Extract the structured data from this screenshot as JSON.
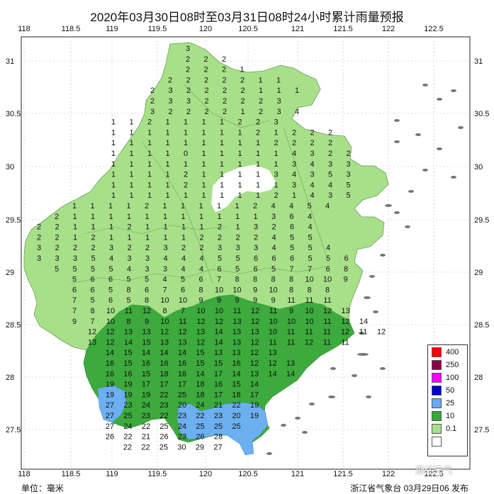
{
  "title": "2020年03月30日08时至03月31日08时24小时累计雨量预报",
  "axes": {
    "x_ticks": [
      "118",
      "118.5",
      "119",
      "119.5",
      "120",
      "120.5",
      "121",
      "121.5",
      "122",
      "122.5"
    ],
    "y_ticks": [
      "31",
      "30.5",
      "30",
      "29.5",
      "29",
      "28.5",
      "28",
      "27.5"
    ]
  },
  "legend": {
    "items": [
      {
        "label": "400",
        "color": "#ff0000"
      },
      {
        "label": "250",
        "color": "#8b0045"
      },
      {
        "label": "100",
        "color": "#ff00ff"
      },
      {
        "label": "50",
        "color": "#0000cc"
      },
      {
        "label": "25",
        "color": "#66aaff"
      },
      {
        "label": "10",
        "color": "#33aa33"
      },
      {
        "label": "0.1",
        "color": "#a8e08a"
      },
      {
        "label": "",
        "color": "#ffffff"
      }
    ]
  },
  "colors": {
    "light_green": "#a8e08a",
    "dark_green": "#3caa3c",
    "blue": "#6cb0f0",
    "sea_island": "#777777"
  },
  "footer": {
    "unit": "单位：毫米",
    "issuer": "浙江省气象台 03月29日06 发布"
  },
  "watermark": "浙江天气",
  "grid_values": [
    [
      "3"
    ],
    [
      "2",
      "2",
      "2"
    ],
    [
      "2",
      "2",
      "2",
      "1"
    ],
    [
      "2",
      "2",
      "2",
      "2",
      "2",
      "1",
      "1"
    ],
    [
      "2",
      "3",
      "2",
      "2",
      "2",
      "2",
      "1",
      "1",
      "1"
    ],
    [
      "2",
      "3",
      "3",
      "2",
      "2",
      "2",
      "2",
      "3"
    ],
    [
      "3",
      "2",
      "2",
      "2",
      "2",
      "1",
      "2",
      "3",
      "4"
    ],
    [
      "1",
      "1",
      "2",
      "1",
      "1",
      "1",
      "1",
      "2",
      "2",
      "3"
    ],
    [
      "1",
      "1",
      "1",
      "1",
      "1",
      "1",
      "1",
      "1",
      "2",
      "1",
      "2",
      "2",
      "2"
    ],
    [
      "1",
      "1",
      "1",
      "1",
      "1",
      "1",
      "1",
      "1",
      "1",
      "2",
      "2",
      "2",
      "2"
    ],
    [
      "1",
      "1",
      "1",
      "1",
      "0",
      "1",
      "1",
      "1",
      "1",
      "1",
      "4",
      "3",
      "2",
      "2"
    ],
    [
      "1",
      "1",
      "1",
      "1",
      "1",
      "1",
      "1",
      "1",
      "1",
      "1",
      "3",
      "4",
      "3",
      "3"
    ],
    [
      "1",
      "1",
      "1",
      "1",
      "2",
      "1",
      "1",
      "1",
      "1",
      "3",
      "4",
      "3",
      "5",
      "3"
    ],
    [
      "1",
      "1",
      "1",
      "1",
      "2",
      "1",
      "1",
      "1",
      "1",
      "1",
      "3",
      "4",
      "4",
      "5"
    ],
    [
      "1",
      "1",
      "1",
      "1",
      "1",
      "1",
      "1",
      "1",
      "1",
      "2",
      "1",
      "4",
      "3",
      "5"
    ],
    [
      "1",
      "1",
      "1",
      "1",
      "2",
      "1",
      "1",
      "1",
      "1",
      "1",
      "2",
      "4",
      "4",
      "5",
      "4"
    ],
    [
      "2",
      "1",
      "1",
      "1",
      "1",
      "1",
      "1",
      "1",
      "1",
      "1",
      "1",
      "1",
      "3",
      "6",
      "4"
    ],
    [
      "2",
      "2",
      "1",
      "1",
      "1",
      "2",
      "1",
      "1",
      "1",
      "1",
      "2",
      "1",
      "3",
      "2",
      "6",
      "4"
    ],
    [
      "2",
      "2",
      "1",
      "2",
      "1",
      "1",
      "1",
      "1",
      "1",
      "2",
      "2",
      "2",
      "2",
      "4",
      "5",
      "5"
    ],
    [
      "3",
      "2",
      "2",
      "2",
      "3",
      "2",
      "2",
      "3",
      "2",
      "2",
      "3",
      "3",
      "3",
      "4",
      "5",
      "5",
      "4"
    ],
    [
      "3",
      "3",
      "3",
      "5",
      "4",
      "3",
      "3",
      "4",
      "4",
      "4",
      "5",
      "5",
      "6",
      "6",
      "6",
      "5",
      "5",
      "6"
    ],
    [
      "5",
      "5",
      "5",
      "5",
      "4",
      "3",
      "3",
      "4",
      "4",
      "6",
      "5",
      "6",
      "5",
      "7",
      "7",
      "6",
      "8"
    ],
    [
      "5",
      "6",
      "6",
      "5",
      "5",
      "4",
      "5",
      "6",
      "7",
      "8",
      "8",
      "8",
      "8",
      "10",
      "10",
      "9"
    ],
    [
      "6",
      "6",
      "5",
      "8",
      "6",
      "7",
      "6",
      "8",
      "10",
      "10",
      "9",
      "10",
      "8",
      "8",
      "8"
    ],
    [
      "7",
      "5",
      "6",
      "5",
      "8",
      "10",
      "10",
      "9",
      "9",
      "9",
      "9",
      "9",
      "11",
      "11",
      "11"
    ],
    [
      "7",
      "8",
      "10",
      "11",
      "12",
      "8",
      "7",
      "10",
      "10",
      "11",
      "12",
      "11",
      "9",
      "10",
      "12",
      "13"
    ],
    [
      "9",
      "7",
      "10",
      "8",
      "9",
      "10",
      "11",
      "12",
      "12",
      "13",
      "12",
      "10",
      "10",
      "10",
      "11",
      "12",
      "14"
    ],
    [
      "12",
      "12",
      "13",
      "13",
      "12",
      "12",
      "13",
      "14",
      "13",
      "13",
      "10",
      "11",
      "11",
      "11",
      "12",
      "11",
      "12"
    ],
    [
      "13",
      "12",
      "14",
      "15",
      "13",
      "13",
      "12",
      "14",
      "13",
      "12",
      "11",
      "11",
      "12",
      "11",
      "11"
    ],
    [
      "14",
      "15",
      "14",
      "14",
      "14",
      "15",
      "13",
      "13",
      "12",
      "13"
    ],
    [
      "16",
      "15",
      "16",
      "16",
      "16",
      "15",
      "15",
      "16",
      "12",
      "12",
      "13"
    ],
    [
      "16",
      "16",
      "15",
      "18",
      "16",
      "14",
      "17",
      "14",
      "13",
      "14",
      "14"
    ],
    [
      "19",
      "19",
      "17",
      "17",
      "17",
      "18",
      "16",
      "15",
      "14"
    ],
    [
      "19",
      "19",
      "19",
      "22",
      "25",
      "18",
      "17",
      "18",
      "17"
    ],
    [
      "27",
      "23",
      "24",
      "23",
      "20",
      "24",
      "21",
      "22",
      "19"
    ],
    [
      "27",
      "25",
      "23",
      "22",
      "23",
      "22",
      "23",
      "20",
      "19"
    ],
    [
      "27",
      "24",
      "22",
      "25",
      "24",
      "25",
      "25",
      "25"
    ],
    [
      "26",
      "22",
      "21",
      "26",
      "23",
      "26",
      "28"
    ],
    [
      "22",
      "22",
      "25",
      "30",
      "29",
      "27"
    ]
  ]
}
